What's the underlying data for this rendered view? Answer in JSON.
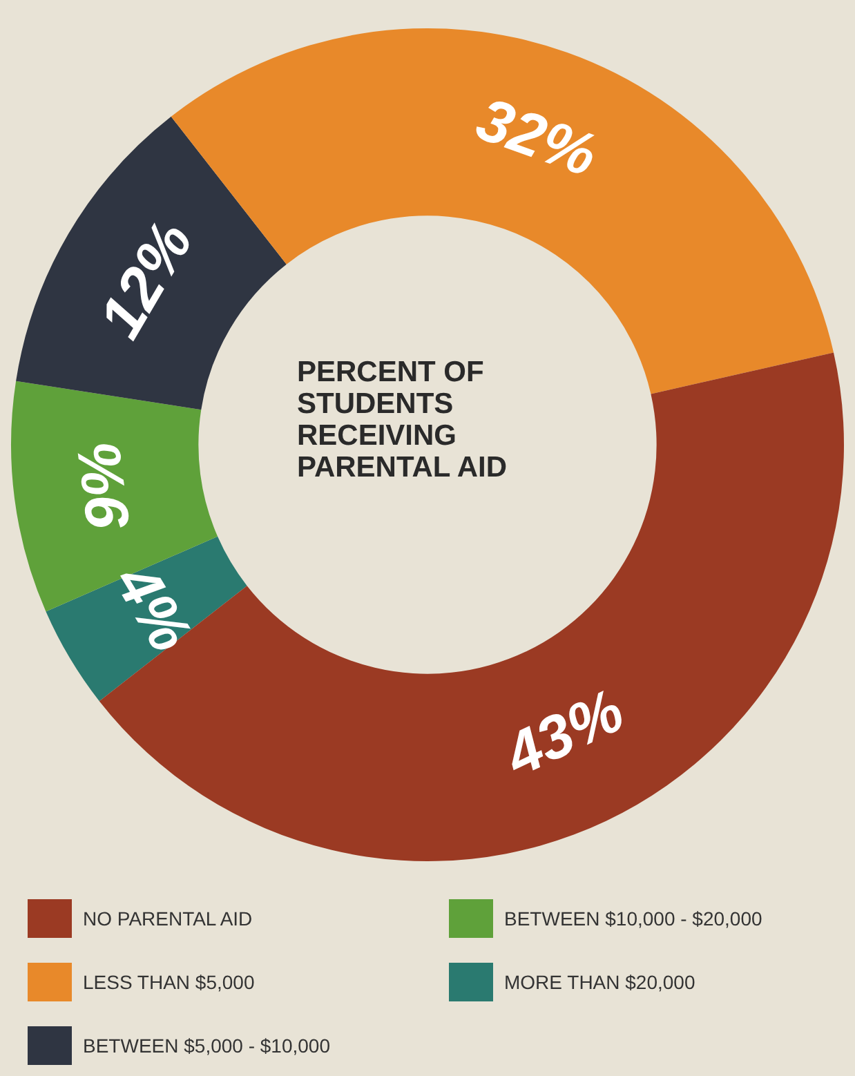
{
  "chart_data": {
    "type": "donut",
    "title": "PERCENT OF STUDENTS RECEIVING PARENTAL AID",
    "categories": [
      "NO PARENTAL AID",
      "LESS THAN $5,000",
      "BETWEEN $5,000 - $10,000",
      "BETWEEN $10,000 - $20,000",
      "MORE THAN $20,000"
    ],
    "values": [
      43,
      32,
      12,
      9,
      4
    ],
    "value_labels": [
      "43%",
      "32%",
      "12%",
      "9%",
      "4%"
    ],
    "colors": [
      "#9b3a23",
      "#e8892a",
      "#2f3542",
      "#5fa13a",
      "#2a7a70"
    ],
    "legend": "bottom"
  }
}
